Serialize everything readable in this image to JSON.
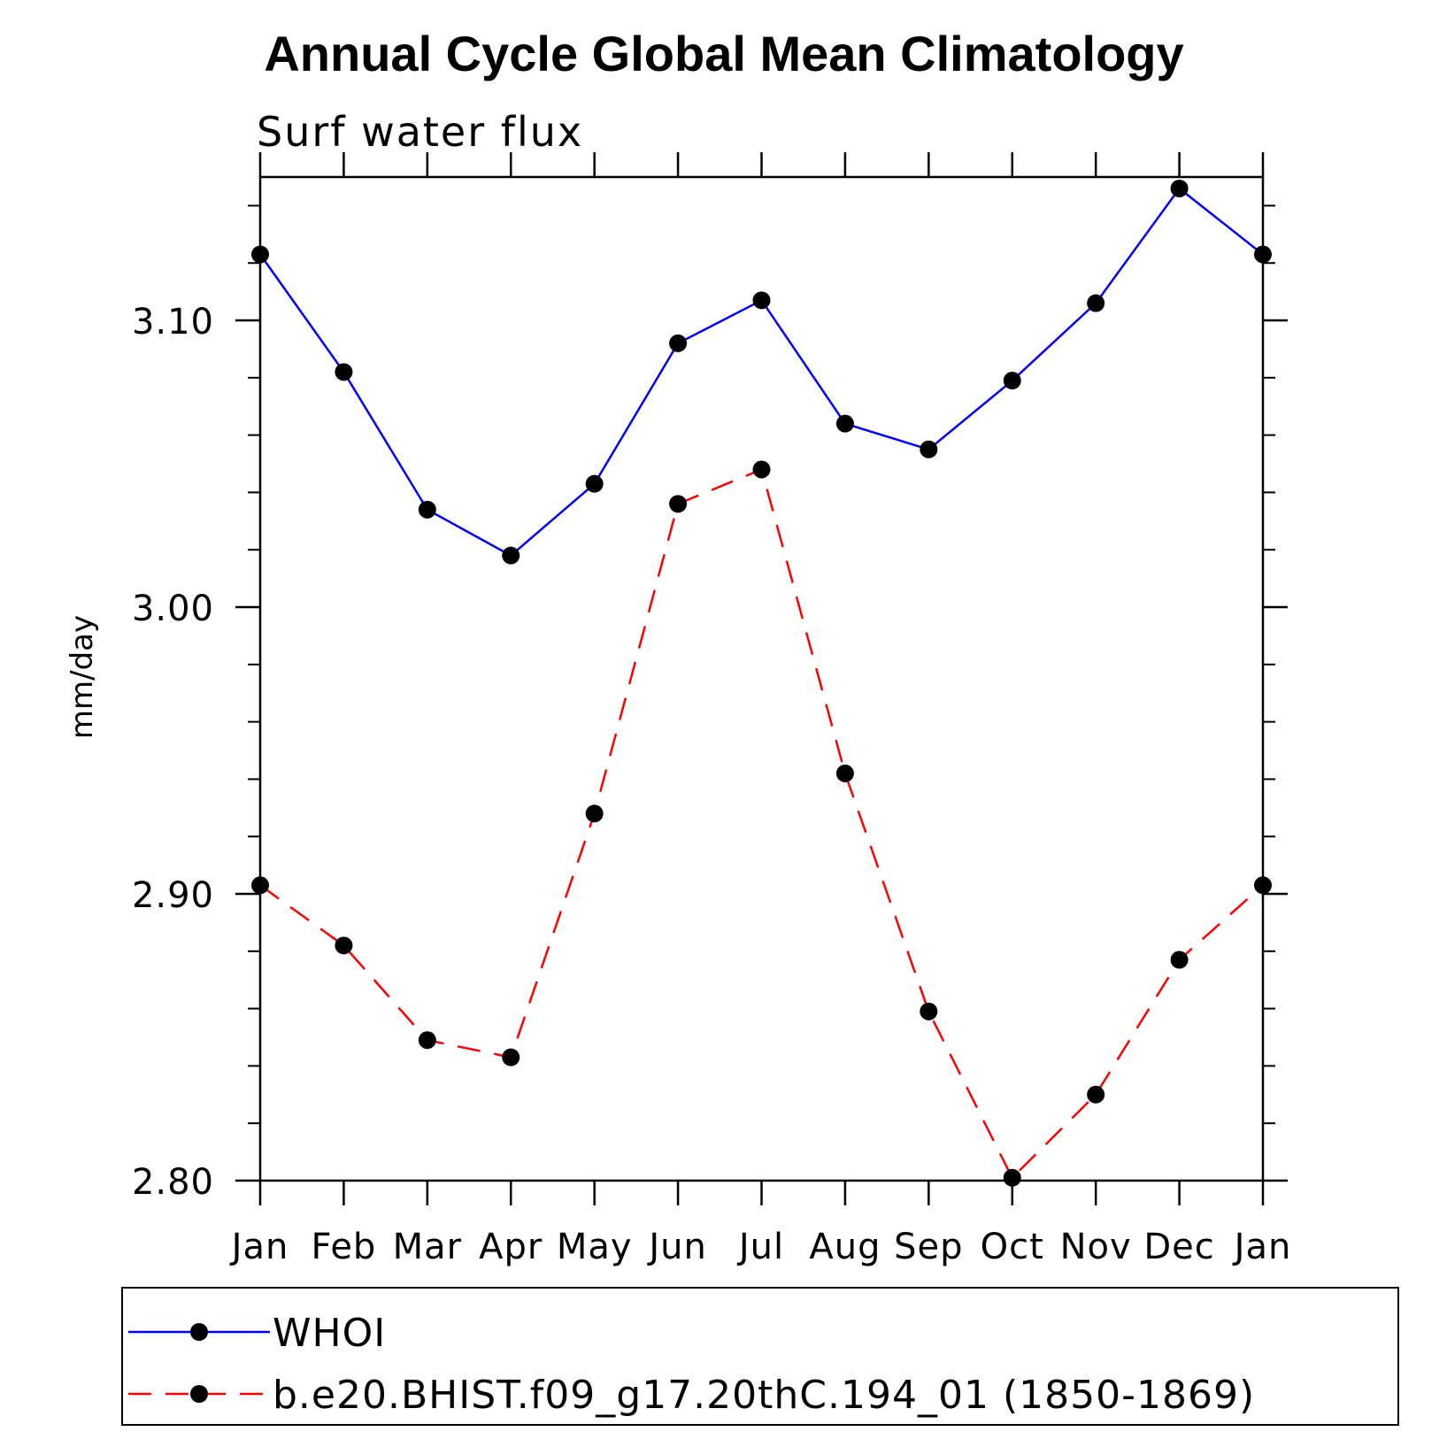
{
  "chart_data": {
    "type": "line",
    "title": "Annual Cycle Global Mean Climatology",
    "subtitle": "Surf water flux",
    "xlabel": "",
    "ylabel": "mm/day",
    "categories": [
      "Jan",
      "Feb",
      "Mar",
      "Apr",
      "May",
      "Jun",
      "Jul",
      "Aug",
      "Sep",
      "Oct",
      "Nov",
      "Dec",
      "Jan"
    ],
    "ylim": [
      2.8,
      3.15
    ],
    "yticks": [
      2.8,
      2.9,
      3.0,
      3.1
    ],
    "ytick_labels": [
      "2.80",
      "2.90",
      "3.00",
      "3.10"
    ],
    "series": [
      {
        "name": "WHOI",
        "color": "#0000ff",
        "line_style": "solid",
        "marker": "filled-circle",
        "values": [
          3.123,
          3.082,
          3.034,
          3.018,
          3.043,
          3.092,
          3.107,
          3.064,
          3.055,
          3.079,
          3.106,
          3.146,
          3.123
        ]
      },
      {
        "name": "b.e20.BHIST.f09_g17.20thC.194_01 (1850-1869)",
        "color": "#ff0000",
        "line_style": "dashed",
        "marker": "filled-circle",
        "values": [
          2.903,
          2.882,
          2.849,
          2.843,
          2.928,
          3.036,
          3.048,
          2.942,
          2.859,
          2.801,
          2.83,
          2.877,
          2.903
        ]
      }
    ],
    "grid": false,
    "legend_position": "bottom"
  }
}
